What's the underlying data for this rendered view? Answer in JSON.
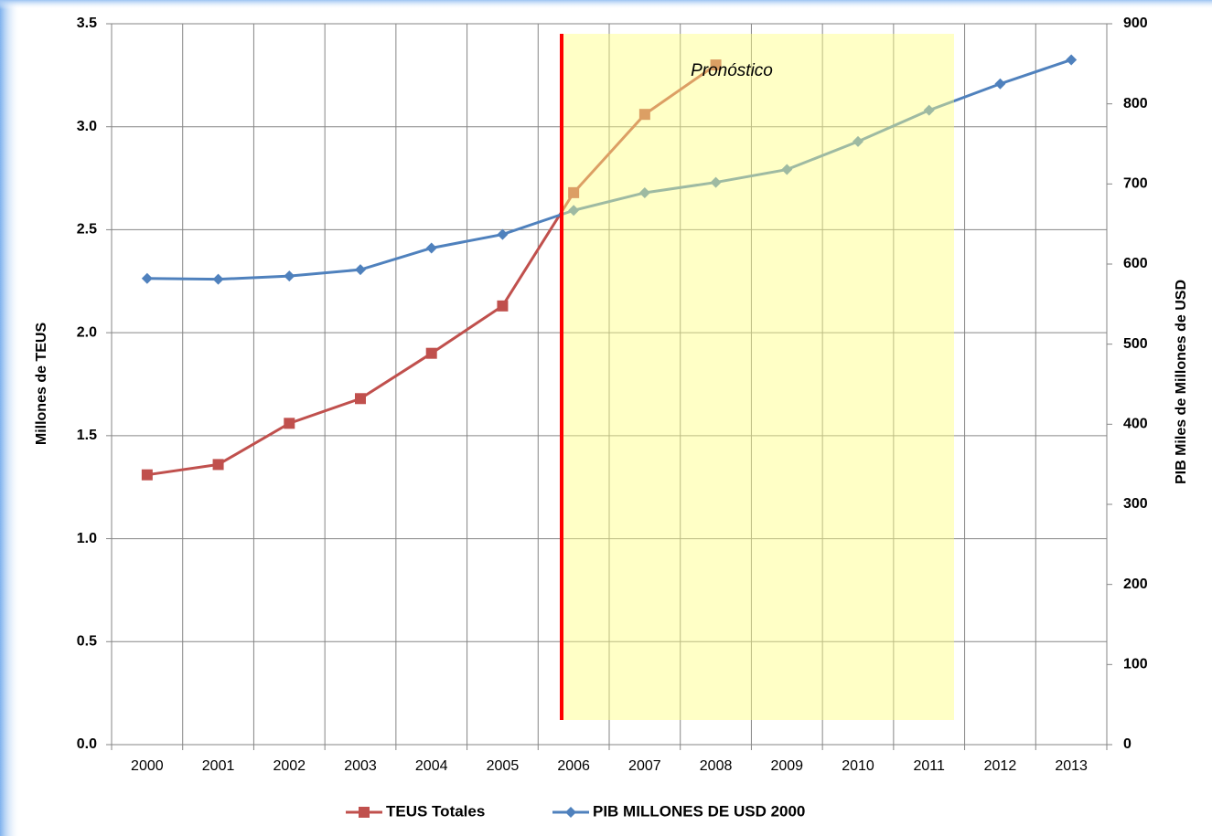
{
  "chart_data": {
    "type": "line",
    "categories": [
      "2000",
      "2001",
      "2002",
      "2003",
      "2004",
      "2005",
      "2006",
      "2007",
      "2008",
      "2009",
      "2010",
      "2011",
      "2012",
      "2013"
    ],
    "series": [
      {
        "name": "TEUS Totales",
        "color": "#c0504d",
        "marker": "square",
        "axis": "y",
        "values": [
          1.31,
          1.36,
          1.56,
          1.68,
          1.9,
          2.13,
          2.68,
          3.06,
          3.3,
          null,
          null,
          null,
          null,
          null
        ]
      },
      {
        "name": "PIB MILLONES DE USD 2000",
        "color": "#4f81bd",
        "marker": "diamond",
        "axis": "y2",
        "values": [
          582,
          581,
          585,
          593,
          620,
          637,
          667,
          689,
          702,
          718,
          753,
          792,
          825,
          855
        ]
      }
    ],
    "ylabel": "Millones de TEUS",
    "y2label": "PIB Miles de Millones de USD",
    "annotation": "Pronóstico",
    "ylim": [
      0,
      3.5
    ],
    "yticks": [
      {
        "value": 0,
        "label": "0.0"
      },
      0.5,
      {
        "value": 1,
        "label": "1.0"
      },
      1.5,
      {
        "value": 2,
        "label": "2.0"
      },
      2.5,
      {
        "value": 3,
        "label": "3.0"
      },
      3.5
    ],
    "y2lim": [
      0,
      900
    ],
    "y2ticks": [
      0,
      100,
      200,
      300,
      400,
      500,
      600,
      700,
      800,
      900
    ],
    "grid": true,
    "legend": "bottom"
  }
}
